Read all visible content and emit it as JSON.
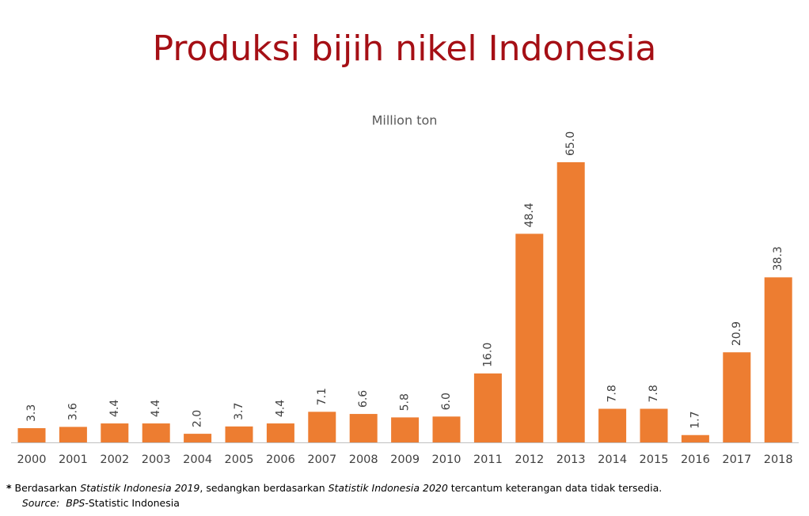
{
  "chart_data": {
    "type": "bar",
    "title": "Produksi bijih nikel Indonesia",
    "subtitle": "Million ton",
    "categories": [
      "2000",
      "2001",
      "2002",
      "2003",
      "2004",
      "2005",
      "2006",
      "2007",
      "2008",
      "2009",
      "2010",
      "2011",
      "2012",
      "2013",
      "2014",
      "2015",
      "2016",
      "2017",
      "2018"
    ],
    "values": [
      3.3,
      3.6,
      4.4,
      4.4,
      2.0,
      3.7,
      4.4,
      7.1,
      6.6,
      5.8,
      6.0,
      16.0,
      48.4,
      65.0,
      7.8,
      7.8,
      1.7,
      20.9,
      38.3
    ],
    "value_labels": [
      "3.3",
      "3.6",
      "4.4",
      "4.4",
      "2.0",
      "3.7",
      "4.4",
      "7.1",
      "6.6",
      "5.8",
      "6.0",
      "16.0",
      "48.4",
      "65.0",
      "7.8",
      "7.8",
      "1.7",
      "20.9",
      "38.3"
    ],
    "color": "#ed7d31",
    "footnote": [
      "*",
      " Berdasarkan ",
      "Statistik Indonesia 2019",
      ", sedangkan berdasarkan ",
      "Statistik Indonesia 2020",
      " tercantum keterangan data tidak tersedia."
    ],
    "source": [
      "Source:",
      "  ",
      "BPS",
      "-Statistic Indonesia"
    ]
  }
}
